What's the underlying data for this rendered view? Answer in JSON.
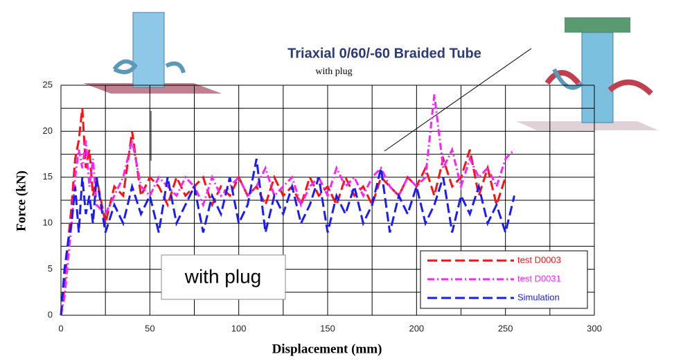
{
  "chart_data": {
    "type": "line",
    "title": "Triaxial 0/60/-60 Braided Tube",
    "subtitle": "with plug",
    "annotation": "with plug",
    "x_label": "Displacement (mm)",
    "y_label": "Force (kN)",
    "xlim": [
      0,
      300
    ],
    "xticks": [
      0,
      50,
      100,
      150,
      200,
      250,
      300
    ],
    "x_minor_grid": [
      25,
      75,
      125,
      175,
      225,
      275
    ],
    "ylim": [
      0,
      25
    ],
    "yticks": [
      0,
      5,
      10,
      15,
      20,
      25
    ],
    "y_minor_grid": [
      2.5,
      7.5,
      12.5,
      17.5,
      22.5
    ],
    "grid": true,
    "legend": "lower right",
    "x": [
      0,
      2,
      4,
      6,
      8,
      10,
      12,
      14,
      16,
      18,
      20,
      25,
      30,
      35,
      40,
      45,
      50,
      55,
      60,
      65,
      70,
      75,
      80,
      85,
      90,
      95,
      100,
      105,
      110,
      115,
      120,
      125,
      130,
      135,
      140,
      145,
      150,
      155,
      160,
      165,
      170,
      175,
      180,
      185,
      190,
      195,
      200,
      205,
      210,
      215,
      220,
      225,
      230,
      235,
      240,
      245,
      250,
      255
    ],
    "series": [
      {
        "name": "test D0003",
        "color": "#ff1010",
        "dash": "dash",
        "values": [
          0,
          3,
          8,
          12,
          17,
          19,
          22.5,
          16,
          18,
          13,
          15,
          10,
          14,
          13,
          20,
          13,
          15,
          14,
          12,
          15,
          13,
          14,
          15,
          12,
          14,
          13,
          15,
          13,
          14,
          12,
          15,
          13,
          14,
          12,
          15,
          13,
          14,
          12,
          15,
          13,
          14,
          12,
          15,
          14,
          13,
          15,
          14,
          16,
          13,
          17,
          14,
          15,
          18,
          13,
          16,
          12,
          15,
          null
        ]
      },
      {
        "name": "test D0031",
        "color": "#ff20ff",
        "dash": "dashdot",
        "values": [
          0,
          2,
          6,
          10,
          15,
          18,
          16,
          19,
          14,
          17,
          12,
          11,
          13,
          15,
          19,
          14,
          13,
          15,
          14,
          13,
          15,
          14,
          12,
          15,
          13,
          14,
          15,
          13,
          14,
          16,
          13,
          14,
          15,
          12,
          14,
          15,
          13,
          16,
          14,
          15,
          13,
          15,
          16,
          14,
          13,
          15,
          14,
          15,
          24,
          16,
          18,
          14,
          17,
          15,
          16,
          14,
          17,
          18
        ]
      },
      {
        "name": "Simulation",
        "color": "#1a1aff",
        "dash": "dash",
        "values": [
          0,
          5,
          8,
          10,
          14,
          9,
          15,
          11,
          13,
          10,
          15,
          9,
          12,
          10,
          14,
          11,
          13,
          9,
          15,
          10,
          12,
          14,
          9,
          13,
          11,
          15,
          10,
          12,
          17,
          9,
          13,
          11,
          14,
          10,
          12,
          15,
          9,
          13,
          11,
          14,
          10,
          12,
          16,
          9,
          13,
          11,
          14,
          10,
          12,
          15,
          9,
          13,
          11,
          14,
          10,
          12,
          9,
          13
        ]
      }
    ]
  }
}
